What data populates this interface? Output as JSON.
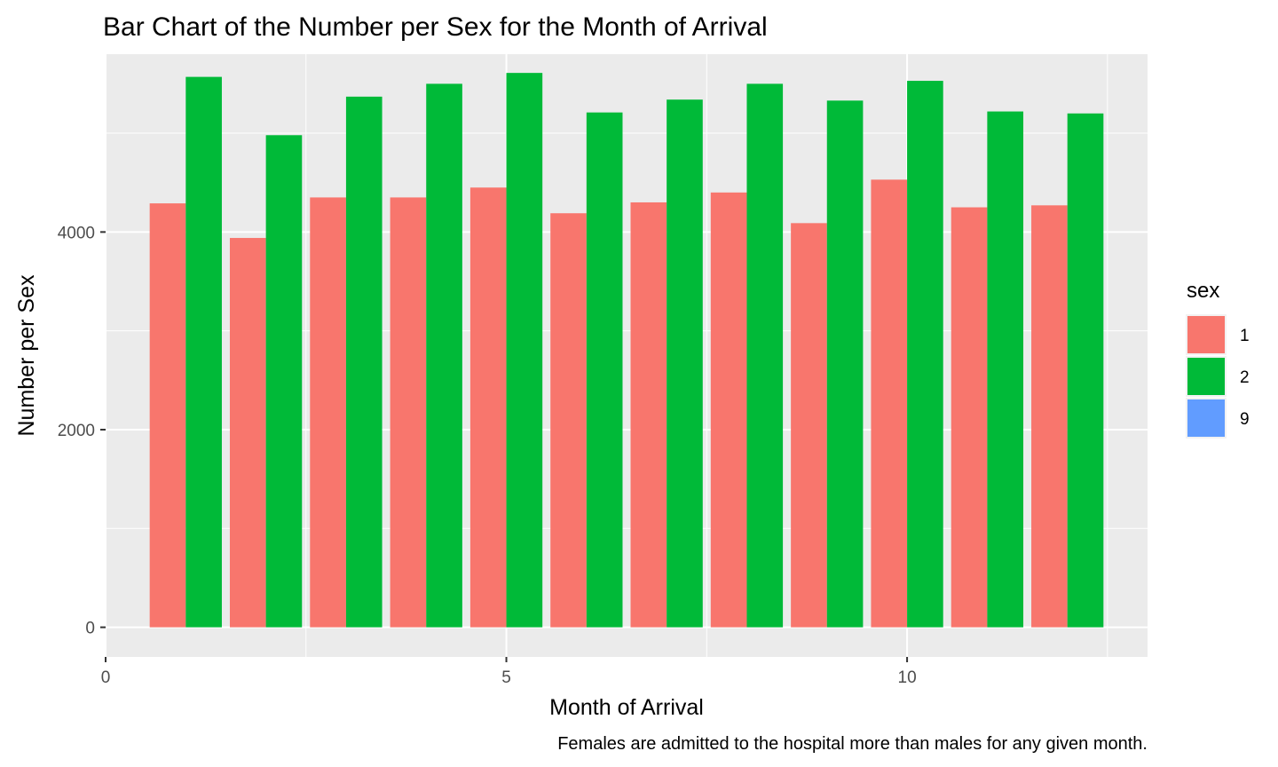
{
  "chart_data": {
    "type": "bar",
    "title": "Bar Chart of the Number per Sex for the Month of Arrival",
    "xlabel": "Month of Arrival",
    "ylabel": "Number per Sex",
    "caption": "Females are admitted to the hospital more than males for any given month.",
    "x": [
      1,
      2,
      3,
      4,
      5,
      6,
      7,
      8,
      9,
      10,
      11,
      12
    ],
    "xlim": [
      0,
      13
    ],
    "ylim": [
      -300,
      5800
    ],
    "x_ticks": [
      0,
      5,
      10
    ],
    "x_tick_labels": [
      "0",
      "5",
      "10"
    ],
    "y_ticks": [
      0,
      2000,
      4000
    ],
    "y_tick_labels": [
      "0",
      "2000",
      "4000"
    ],
    "grid": true,
    "legend": {
      "title": "sex",
      "placement": "right"
    },
    "series": [
      {
        "name": "1",
        "color": "#F8766D",
        "values": [
          4290,
          3940,
          4350,
          4350,
          4450,
          4190,
          4300,
          4400,
          4090,
          4530,
          4250,
          4270
        ]
      },
      {
        "name": "2",
        "color": "#00BA38",
        "values": [
          5570,
          4980,
          5370,
          5500,
          5610,
          5210,
          5340,
          5500,
          5330,
          5530,
          5220,
          5200
        ]
      },
      {
        "name": "9",
        "color": "#619CFF",
        "values": [
          0,
          0,
          0,
          0,
          0,
          0,
          0,
          0,
          0,
          0,
          0,
          0
        ]
      }
    ]
  }
}
